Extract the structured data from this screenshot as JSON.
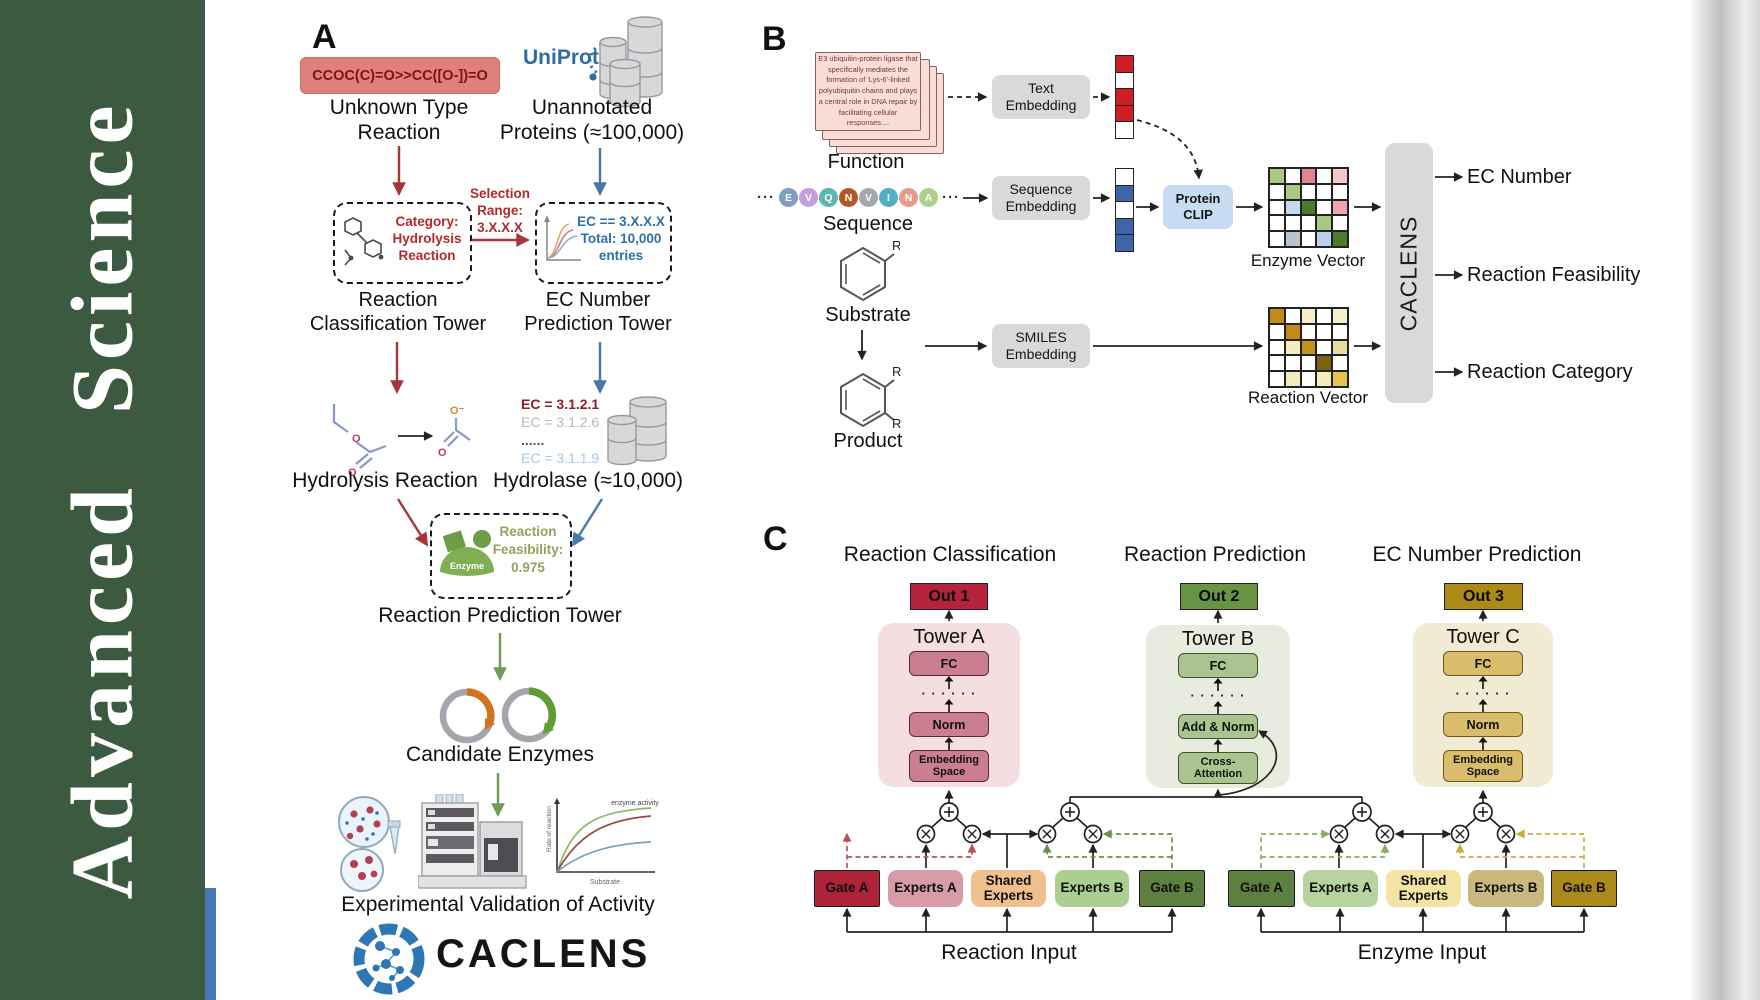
{
  "journal": {
    "name": "Advanced Science"
  },
  "colors": {
    "sidebar_green": "#3c5a3f",
    "blue_strip": "#4677b8",
    "smiles_bg": "#e0807c",
    "smiles_text": "#7c1416",
    "red_arrow": "#a93439",
    "blue_arrow": "#4879a9",
    "green_arrow": "#6f9d53",
    "uniprot_blue": "#2e6ca3",
    "category_red": "#b22a2a",
    "ec_blue": "#2d6fa8",
    "feasibility_green": "#94a25c",
    "enzyme_green": "#7fae55",
    "embed_box": "#d9d9d9",
    "protein_clip": "#c7dcf2",
    "caclens_bar": "#d9d9d9"
  },
  "panelA": {
    "label": "A",
    "smiles": "CCOC(C)=O>>CC([O-])=O",
    "unknown_l1": "Unknown Type",
    "unknown_l2": "Reaction",
    "uniprot": "UniProt",
    "unannotated_l1": "Unannotated",
    "unannotated_l2": "Proteins (≈100,000)",
    "category_l1": "Category:",
    "category_l2": "Hydrolysis",
    "category_l3": "Reaction",
    "selection_l1": "Selection",
    "selection_l2": "Range:",
    "selection_l3": "3.X.X.X",
    "ecbox_l1": "EC == 3.X.X.X",
    "ecbox_l2": "Total: 10,000",
    "ecbox_l3": "entries",
    "tower1_l1": "Reaction",
    "tower1_l2": "Classification Tower",
    "tower2_l1": "EC Number",
    "tower2_l2": "Prediction Tower",
    "hydrolysis_label": "Hydrolysis Reaction",
    "ec_list": [
      {
        "text": "EC = 3.1.2.1",
        "color": "#8f1d2c",
        "bold": true
      },
      {
        "text": "EC = 3.1.2.6",
        "color": "#b9b9bd",
        "bold": false
      },
      {
        "text": "......",
        "color": "#555555",
        "bold": true
      },
      {
        "text": "EC = 3.1.1.9",
        "color": "#a9c6e8",
        "bold": false
      }
    ],
    "hydrolase_label": "Hydrolase (≈10,000)",
    "enzyme": "Enzyme",
    "feasibility_l1": "Reaction",
    "feasibility_l2": "Feasibility:",
    "feasibility_l3": "0.975",
    "tower3_label": "Reaction Prediction Tower",
    "candidates_label": "Candidate Enzymes",
    "mini_plot": {
      "ylabel": "Rate of reaction",
      "xlabel": "Substrate",
      "annotation": "enzyme activity"
    },
    "validation_label": "Experimental Validation of Activity",
    "logo": "CACLENS",
    "atoms": {
      "o": "O",
      "o_minus": "O⁻"
    }
  },
  "panelB": {
    "label": "B",
    "function_text": "E3 ubiquitin-protein ligase that specifically mediates the formation of 'Lys-6'-linked polyubiquitin chains and plays a central role in DNA repair by facilitating cellular responses....",
    "function_label": "Function",
    "ellipsis": "···",
    "sequence": [
      {
        "letter": "E",
        "color": "#7f9ec3"
      },
      {
        "letter": "V",
        "color": "#c3a0de"
      },
      {
        "letter": "Q",
        "color": "#5fb6ad"
      },
      {
        "letter": "N",
        "color": "#b15a28"
      },
      {
        "letter": "V",
        "color": "#a6a6ae"
      },
      {
        "letter": "I",
        "color": "#4fb0c6"
      },
      {
        "letter": "N",
        "color": "#e89a8a"
      },
      {
        "letter": "A",
        "color": "#aed08d"
      }
    ],
    "sequence_label": "Sequence",
    "substrate_label": "Substrate",
    "product_label": "Product",
    "r": "R",
    "text_embedding": "Text Embedding",
    "sequence_embedding": "Sequence Embedding",
    "smiles_embedding": "SMILES Embedding",
    "protein_clip": "Protein CLIP",
    "text_vector": [
      "#cf1e24",
      "#ffffff",
      "#cf1e24",
      "#cf1e24",
      "#ffffff"
    ],
    "seq_vector": [
      "#ffffff",
      "#3f65a8",
      "#ffffff",
      "#3f65a8",
      "#3f65a8"
    ],
    "enzyme_matrix": [
      "#a9c983",
      "#ffffff",
      "#e3838a",
      "#ffffff",
      "#f3c6ca",
      "#ffffff",
      "#a9c983",
      "#ffffff",
      "#ffffff",
      "#ffffff",
      "#ffffff",
      "#c9d9ec",
      "#4e7a2b",
      "#ffffff",
      "#eda6aa",
      "#ffffff",
      "#ffffff",
      "#ffffff",
      "#a9c983",
      "#ffffff",
      "#ffffff",
      "#b9c4d1",
      "#ffffff",
      "#bdd0e9",
      "#4e7a2b"
    ],
    "reaction_matrix": [
      "#c08b17",
      "#ffffff",
      "#f6eec6",
      "#ffffff",
      "#f8f0cd",
      "#ffffff",
      "#c08b17",
      "#ffffff",
      "#ffffff",
      "#ffffff",
      "#ffffff",
      "#f6ecc0",
      "#c2921c",
      "#ffffff",
      "#ead9a0",
      "#ffffff",
      "#ffffff",
      "#ffffff",
      "#7a6110",
      "#ffffff",
      "#ffffff",
      "#f4eabf",
      "#ffffff",
      "#f6edba",
      "#e7c44e"
    ],
    "enzyme_vector_label": "Enzyme Vector",
    "reaction_vector_label": "Reaction Vector",
    "caclens": "CACLENS",
    "outputs": [
      "EC Number",
      "Reaction Feasibility",
      "Reaction Category"
    ]
  },
  "panelC": {
    "label": "C",
    "headings": [
      "Reaction Classification",
      "Reaction Prediction",
      "EC Number Prediction"
    ],
    "outs": [
      {
        "text": "Out 1",
        "fill": "#b5233a"
      },
      {
        "text": "Out 2",
        "fill": "#679543"
      },
      {
        "text": "Out 3",
        "fill": "#ac8a18"
      }
    ],
    "towers": [
      {
        "title": "Tower A",
        "bg": "#f4dee2",
        "box": "#ca7e8f",
        "fc": "FC",
        "dots": "· · · · · ·",
        "mid": "Norm",
        "bottom": "Embedding Space"
      },
      {
        "title": "Tower B",
        "bg": "#e7ecdf",
        "box": "#a9c48e",
        "fc": "FC",
        "dots": "· · · · · ·",
        "mid": "Add & Norm",
        "bottom": "Cross-Attention"
      },
      {
        "title": "Tower C",
        "bg": "#f2ebd3",
        "box": "#d9bd6d",
        "fc": "FC",
        "dots": "· · · · · ·",
        "mid": "Norm",
        "bottom": "Embedding Space"
      }
    ],
    "groups": [
      {
        "label": "Reaction Input",
        "boxes": [
          {
            "text": "Gate A",
            "fill": "#ad2438"
          },
          {
            "text": "Experts A",
            "fill": "#d79ca8"
          },
          {
            "text": "Shared Experts",
            "fill": "#efc08d"
          },
          {
            "text": "Experts B",
            "fill": "#abce91"
          },
          {
            "text": "Gate B",
            "fill": "#5d8040"
          }
        ]
      },
      {
        "label": "Enzyme Input",
        "boxes": [
          {
            "text": "Gate A",
            "fill": "#5d8040"
          },
          {
            "text": "Experts A",
            "fill": "#b7d3a0"
          },
          {
            "text": "Shared Experts",
            "fill": "#f4e4a4"
          },
          {
            "text": "Experts B",
            "fill": "#c9b97e"
          },
          {
            "text": "Gate B",
            "fill": "#ab8a1c"
          }
        ]
      }
    ]
  }
}
